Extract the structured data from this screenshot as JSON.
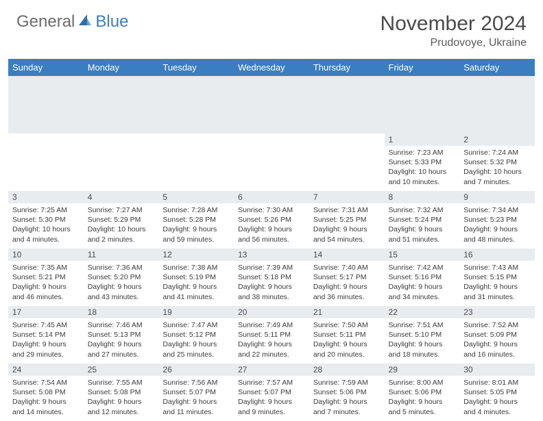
{
  "brand": {
    "general": "General",
    "blue": "Blue"
  },
  "header": {
    "month_title": "November 2024",
    "location": "Prudovoye, Ukraine"
  },
  "colors": {
    "header_bg": "#3a7ebf",
    "header_text": "#ffffff",
    "daynum_bg": "#e9ecef",
    "body_text": "#3a3a3a"
  },
  "weekdays": [
    "Sunday",
    "Monday",
    "Tuesday",
    "Wednesday",
    "Thursday",
    "Friday",
    "Saturday"
  ],
  "weeks": [
    [
      {
        "num": "",
        "sr": "",
        "ss": "",
        "dl": ""
      },
      {
        "num": "",
        "sr": "",
        "ss": "",
        "dl": ""
      },
      {
        "num": "",
        "sr": "",
        "ss": "",
        "dl": ""
      },
      {
        "num": "",
        "sr": "",
        "ss": "",
        "dl": ""
      },
      {
        "num": "",
        "sr": "",
        "ss": "",
        "dl": ""
      },
      {
        "num": "1",
        "sr": "Sunrise: 7:23 AM",
        "ss": "Sunset: 5:33 PM",
        "dl": "Daylight: 10 hours and 10 minutes."
      },
      {
        "num": "2",
        "sr": "Sunrise: 7:24 AM",
        "ss": "Sunset: 5:32 PM",
        "dl": "Daylight: 10 hours and 7 minutes."
      }
    ],
    [
      {
        "num": "3",
        "sr": "Sunrise: 7:25 AM",
        "ss": "Sunset: 5:30 PM",
        "dl": "Daylight: 10 hours and 4 minutes."
      },
      {
        "num": "4",
        "sr": "Sunrise: 7:27 AM",
        "ss": "Sunset: 5:29 PM",
        "dl": "Daylight: 10 hours and 2 minutes."
      },
      {
        "num": "5",
        "sr": "Sunrise: 7:28 AM",
        "ss": "Sunset: 5:28 PM",
        "dl": "Daylight: 9 hours and 59 minutes."
      },
      {
        "num": "6",
        "sr": "Sunrise: 7:30 AM",
        "ss": "Sunset: 5:26 PM",
        "dl": "Daylight: 9 hours and 56 minutes."
      },
      {
        "num": "7",
        "sr": "Sunrise: 7:31 AM",
        "ss": "Sunset: 5:25 PM",
        "dl": "Daylight: 9 hours and 54 minutes."
      },
      {
        "num": "8",
        "sr": "Sunrise: 7:32 AM",
        "ss": "Sunset: 5:24 PM",
        "dl": "Daylight: 9 hours and 51 minutes."
      },
      {
        "num": "9",
        "sr": "Sunrise: 7:34 AM",
        "ss": "Sunset: 5:23 PM",
        "dl": "Daylight: 9 hours and 48 minutes."
      }
    ],
    [
      {
        "num": "10",
        "sr": "Sunrise: 7:35 AM",
        "ss": "Sunset: 5:21 PM",
        "dl": "Daylight: 9 hours and 46 minutes."
      },
      {
        "num": "11",
        "sr": "Sunrise: 7:36 AM",
        "ss": "Sunset: 5:20 PM",
        "dl": "Daylight: 9 hours and 43 minutes."
      },
      {
        "num": "12",
        "sr": "Sunrise: 7:38 AM",
        "ss": "Sunset: 5:19 PM",
        "dl": "Daylight: 9 hours and 41 minutes."
      },
      {
        "num": "13",
        "sr": "Sunrise: 7:39 AM",
        "ss": "Sunset: 5:18 PM",
        "dl": "Daylight: 9 hours and 38 minutes."
      },
      {
        "num": "14",
        "sr": "Sunrise: 7:40 AM",
        "ss": "Sunset: 5:17 PM",
        "dl": "Daylight: 9 hours and 36 minutes."
      },
      {
        "num": "15",
        "sr": "Sunrise: 7:42 AM",
        "ss": "Sunset: 5:16 PM",
        "dl": "Daylight: 9 hours and 34 minutes."
      },
      {
        "num": "16",
        "sr": "Sunrise: 7:43 AM",
        "ss": "Sunset: 5:15 PM",
        "dl": "Daylight: 9 hours and 31 minutes."
      }
    ],
    [
      {
        "num": "17",
        "sr": "Sunrise: 7:45 AM",
        "ss": "Sunset: 5:14 PM",
        "dl": "Daylight: 9 hours and 29 minutes."
      },
      {
        "num": "18",
        "sr": "Sunrise: 7:46 AM",
        "ss": "Sunset: 5:13 PM",
        "dl": "Daylight: 9 hours and 27 minutes."
      },
      {
        "num": "19",
        "sr": "Sunrise: 7:47 AM",
        "ss": "Sunset: 5:12 PM",
        "dl": "Daylight: 9 hours and 25 minutes."
      },
      {
        "num": "20",
        "sr": "Sunrise: 7:49 AM",
        "ss": "Sunset: 5:11 PM",
        "dl": "Daylight: 9 hours and 22 minutes."
      },
      {
        "num": "21",
        "sr": "Sunrise: 7:50 AM",
        "ss": "Sunset: 5:11 PM",
        "dl": "Daylight: 9 hours and 20 minutes."
      },
      {
        "num": "22",
        "sr": "Sunrise: 7:51 AM",
        "ss": "Sunset: 5:10 PM",
        "dl": "Daylight: 9 hours and 18 minutes."
      },
      {
        "num": "23",
        "sr": "Sunrise: 7:52 AM",
        "ss": "Sunset: 5:09 PM",
        "dl": "Daylight: 9 hours and 16 minutes."
      }
    ],
    [
      {
        "num": "24",
        "sr": "Sunrise: 7:54 AM",
        "ss": "Sunset: 5:08 PM",
        "dl": "Daylight: 9 hours and 14 minutes."
      },
      {
        "num": "25",
        "sr": "Sunrise: 7:55 AM",
        "ss": "Sunset: 5:08 PM",
        "dl": "Daylight: 9 hours and 12 minutes."
      },
      {
        "num": "26",
        "sr": "Sunrise: 7:56 AM",
        "ss": "Sunset: 5:07 PM",
        "dl": "Daylight: 9 hours and 11 minutes."
      },
      {
        "num": "27",
        "sr": "Sunrise: 7:57 AM",
        "ss": "Sunset: 5:07 PM",
        "dl": "Daylight: 9 hours and 9 minutes."
      },
      {
        "num": "28",
        "sr": "Sunrise: 7:59 AM",
        "ss": "Sunset: 5:06 PM",
        "dl": "Daylight: 9 hours and 7 minutes."
      },
      {
        "num": "29",
        "sr": "Sunrise: 8:00 AM",
        "ss": "Sunset: 5:06 PM",
        "dl": "Daylight: 9 hours and 5 minutes."
      },
      {
        "num": "30",
        "sr": "Sunrise: 8:01 AM",
        "ss": "Sunset: 5:05 PM",
        "dl": "Daylight: 9 hours and 4 minutes."
      }
    ]
  ]
}
